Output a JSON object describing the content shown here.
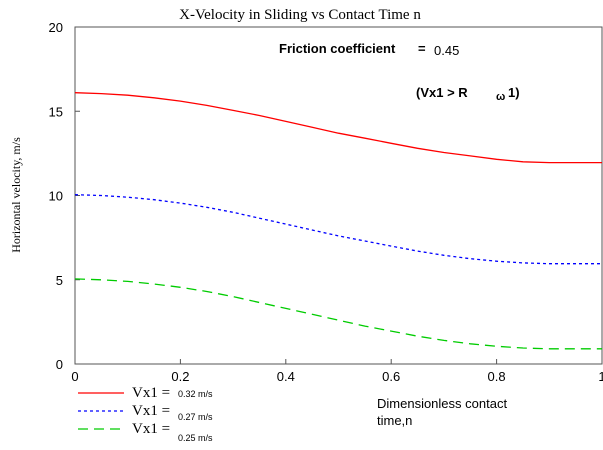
{
  "chart_data": {
    "type": "line",
    "title": "X-Velocity in Sliding vs Contact Time n",
    "xlabel": "Dimensionless contact time,n",
    "xlabel_lines": [
      "Dimensionless contact",
      "time,n"
    ],
    "ylabel": "Horizontal velocity, m/s",
    "xlim": [
      0,
      1
    ],
    "ylim": [
      0,
      20
    ],
    "x_ticks": [
      0,
      0.2,
      0.4,
      0.6,
      0.8,
      1
    ],
    "x_tick_labels": [
      "0",
      "0.2",
      "0.4",
      "0.6",
      "0.8",
      "1"
    ],
    "y_ticks": [
      0,
      5,
      10,
      15,
      20
    ],
    "y_tick_labels": [
      "0",
      "5",
      "10",
      "15",
      "20"
    ],
    "grid": false,
    "legend_position": "bottom-left",
    "annotations": {
      "friction_label": "Friction coefficient",
      "friction_eq": "=",
      "friction_value": "0.45",
      "condition_main": "(Vx1 > R",
      "condition_sub": "ω",
      "condition_end": "1)"
    },
    "series": [
      {
        "name": "Vx1 = 0.32 m/s",
        "legend_main": "Vx1 =",
        "legend_sub": "0.32 m/s",
        "color": "#ff0000",
        "style": "solid",
        "x": [
          0,
          0.05,
          0.1,
          0.15,
          0.2,
          0.25,
          0.3,
          0.35,
          0.4,
          0.45,
          0.5,
          0.55,
          0.6,
          0.65,
          0.7,
          0.75,
          0.8,
          0.85,
          0.9,
          0.95,
          1.0
        ],
        "values": [
          16.1,
          16.05,
          15.95,
          15.8,
          15.6,
          15.35,
          15.05,
          14.75,
          14.4,
          14.05,
          13.7,
          13.4,
          13.1,
          12.8,
          12.55,
          12.35,
          12.15,
          12.0,
          11.95,
          11.95,
          11.95
        ]
      },
      {
        "name": "Vx1 = 0.27 m/s",
        "legend_main": "Vx1 =",
        "legend_sub": "0.27 m/s",
        "color": "#0000ff",
        "style": "dotted",
        "x": [
          0,
          0.05,
          0.1,
          0.15,
          0.2,
          0.25,
          0.3,
          0.35,
          0.4,
          0.45,
          0.5,
          0.55,
          0.6,
          0.65,
          0.7,
          0.75,
          0.8,
          0.85,
          0.9,
          0.95,
          1.0
        ],
        "values": [
          10.05,
          10.0,
          9.9,
          9.75,
          9.55,
          9.3,
          9.0,
          8.65,
          8.3,
          7.95,
          7.6,
          7.3,
          7.0,
          6.7,
          6.45,
          6.25,
          6.1,
          6.0,
          5.95,
          5.95,
          5.95
        ]
      },
      {
        "name": "Vx1 = 0.25 m/s",
        "legend_main": "Vx1 =",
        "legend_sub": "0.25 m/s",
        "color": "#00cc00",
        "style": "dashed",
        "x": [
          0,
          0.05,
          0.1,
          0.15,
          0.2,
          0.25,
          0.3,
          0.35,
          0.4,
          0.45,
          0.5,
          0.55,
          0.6,
          0.65,
          0.7,
          0.75,
          0.8,
          0.85,
          0.9,
          0.95,
          1.0
        ],
        "values": [
          5.05,
          5.0,
          4.9,
          4.75,
          4.55,
          4.3,
          4.0,
          3.65,
          3.3,
          2.95,
          2.6,
          2.25,
          1.95,
          1.65,
          1.4,
          1.2,
          1.05,
          0.95,
          0.9,
          0.9,
          0.9
        ]
      }
    ]
  }
}
